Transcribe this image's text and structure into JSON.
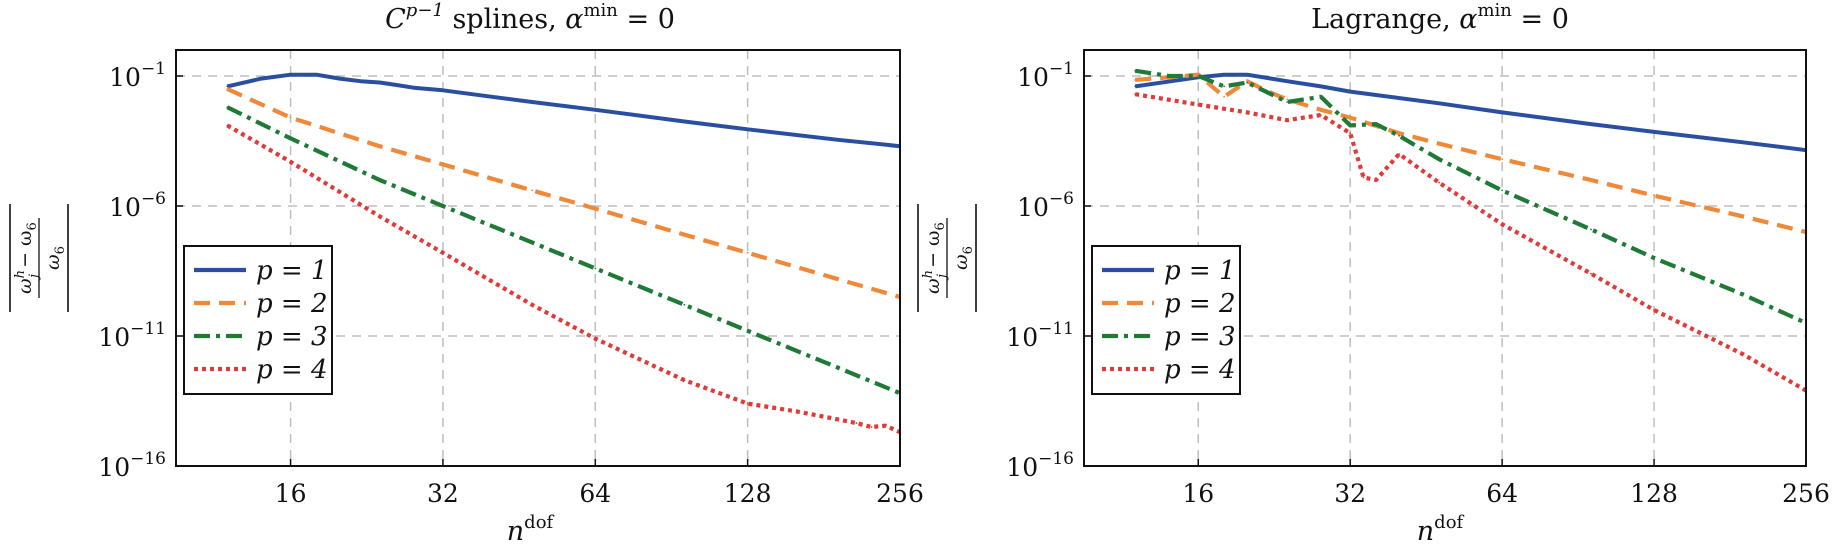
{
  "chart_data": [
    {
      "type": "line",
      "title": "C^{p−1} splines, α^min = 0",
      "title_parts": {
        "C": "C",
        "p_minus_one": "p−1",
        "splines": " splines, ",
        "alpha": "α",
        "min": "min",
        "equals_zero": " = 0"
      },
      "xlabel": {
        "n": "n",
        "dof": "dof"
      },
      "ylabel": "|(ω_j^h − ω_6)/ω_6|",
      "x_scale": "log2",
      "y_scale": "log10",
      "xlim": [
        9.5,
        256
      ],
      "ylim": [
        1e-16,
        1
      ],
      "x_ticks": [
        {
          "value": 16,
          "label": "16"
        },
        {
          "value": 32,
          "label": "32"
        },
        {
          "value": 64,
          "label": "64"
        },
        {
          "value": 128,
          "label": "128"
        },
        {
          "value": 256,
          "label": "256"
        }
      ],
      "y_ticks": [
        {
          "exp": -1,
          "base": "10",
          "sup": "−1"
        },
        {
          "exp": -6,
          "base": "10",
          "sup": "−6"
        },
        {
          "exp": -11,
          "base": "10",
          "sup": "−11"
        },
        {
          "exp": -16,
          "base": "10",
          "sup": "−16"
        }
      ],
      "grid": true,
      "legend_position": "bottom-left",
      "series": [
        {
          "name": "p = 1",
          "p": "1",
          "color": "#2b4fa0",
          "style": "solid",
          "x": [
            12,
            14,
            16,
            18,
            20,
            22,
            24,
            26,
            28,
            32,
            40,
            48,
            64,
            96,
            128,
            192,
            256
          ],
          "log10_y": [
            -1.4,
            -1.1,
            -0.95,
            -0.95,
            -1.1,
            -1.2,
            -1.25,
            -1.35,
            -1.45,
            -1.55,
            -1.8,
            -2.0,
            -2.3,
            -2.75,
            -3.05,
            -3.45,
            -3.7
          ]
        },
        {
          "name": "p = 2",
          "p": "2",
          "color": "#f0883a",
          "style": "dashed",
          "x": [
            12,
            16,
            24,
            32,
            48,
            64,
            96,
            128,
            192,
            256
          ],
          "log10_y": [
            -1.5,
            -2.6,
            -3.7,
            -4.4,
            -5.4,
            -6.1,
            -7.1,
            -7.8,
            -8.8,
            -9.5
          ]
        },
        {
          "name": "p = 3",
          "p": "3",
          "color": "#1e7a36",
          "style": "dashdot",
          "x": [
            12,
            16,
            24,
            32,
            48,
            64,
            96,
            128,
            192,
            256
          ],
          "log10_y": [
            -2.2,
            -3.4,
            -5.0,
            -6.0,
            -7.4,
            -8.4,
            -9.8,
            -10.8,
            -12.2,
            -13.2
          ]
        },
        {
          "name": "p = 4",
          "p": "4",
          "color": "#e03a3a",
          "style": "dotted",
          "x": [
            12,
            16,
            24,
            32,
            48,
            64,
            96,
            128,
            160,
            192,
            210,
            225,
            240,
            256
          ],
          "log10_y": [
            -2.9,
            -4.3,
            -6.4,
            -7.8,
            -9.8,
            -11.1,
            -12.7,
            -13.6,
            -13.9,
            -14.2,
            -14.35,
            -14.5,
            -14.45,
            -14.7
          ]
        }
      ]
    },
    {
      "type": "line",
      "title": "Lagrange, α^min = 0",
      "title_parts": {
        "lagrange": "Lagrange, ",
        "alpha": "α",
        "min": "min",
        "equals_zero": " = 0"
      },
      "xlabel": {
        "n": "n",
        "dof": "dof"
      },
      "ylabel": "|(ω_j^h − ω_6)/ω_6|",
      "x_scale": "log2",
      "y_scale": "log10",
      "xlim": [
        9.5,
        256
      ],
      "ylim": [
        1e-16,
        1
      ],
      "x_ticks": [
        {
          "value": 16,
          "label": "16"
        },
        {
          "value": 32,
          "label": "32"
        },
        {
          "value": 64,
          "label": "64"
        },
        {
          "value": 128,
          "label": "128"
        },
        {
          "value": 256,
          "label": "256"
        }
      ],
      "y_ticks": [
        {
          "exp": -1,
          "base": "10",
          "sup": "−1"
        },
        {
          "exp": -6,
          "base": "10",
          "sup": "−6"
        },
        {
          "exp": -11,
          "base": "10",
          "sup": "−11"
        },
        {
          "exp": -16,
          "base": "10",
          "sup": "−16"
        }
      ],
      "grid": true,
      "legend_position": "bottom-left",
      "series": [
        {
          "name": "p = 1",
          "p": "1",
          "color": "#2b4fa0",
          "style": "solid",
          "x": [
            12,
            16,
            18,
            20,
            24,
            28,
            32,
            48,
            64,
            96,
            128,
            192,
            256
          ],
          "log10_y": [
            -1.4,
            -1.05,
            -0.95,
            -0.95,
            -1.2,
            -1.4,
            -1.6,
            -2.05,
            -2.4,
            -2.85,
            -3.15,
            -3.55,
            -3.85
          ]
        },
        {
          "name": "p = 2",
          "p": "2",
          "color": "#f0883a",
          "style": "dashed",
          "x": [
            12,
            14,
            16,
            18,
            20,
            22,
            24,
            28,
            32,
            40,
            48,
            64,
            96,
            128,
            192,
            256
          ],
          "log10_y": [
            -1.15,
            -1.05,
            -0.95,
            -1.8,
            -1.2,
            -1.6,
            -1.9,
            -2.3,
            -2.6,
            -3.2,
            -3.6,
            -4.2,
            -5.0,
            -5.6,
            -6.4,
            -7.0
          ]
        },
        {
          "name": "p = 3",
          "p": "3",
          "color": "#1e7a36",
          "style": "dashdot",
          "x": [
            12,
            14,
            16,
            18,
            20,
            24,
            28,
            32,
            36,
            40,
            48,
            64,
            96,
            128,
            192,
            256
          ],
          "log10_y": [
            -0.8,
            -1.0,
            -1.0,
            -1.4,
            -1.25,
            -2.0,
            -1.8,
            -2.9,
            -2.85,
            -3.3,
            -4.2,
            -5.4,
            -6.9,
            -8.0,
            -9.4,
            -10.5
          ]
        },
        {
          "name": "p = 4",
          "p": "4",
          "color": "#e03a3a",
          "style": "dotted",
          "x": [
            12,
            16,
            20,
            24,
            28,
            32,
            34,
            36,
            40,
            48,
            64,
            96,
            128,
            192,
            256
          ],
          "log10_y": [
            -1.7,
            -2.1,
            -2.4,
            -2.7,
            -2.5,
            -3.2,
            -4.9,
            -5.0,
            -4.0,
            -5.1,
            -6.7,
            -8.6,
            -10.0,
            -11.7,
            -13.1
          ]
        }
      ]
    }
  ]
}
